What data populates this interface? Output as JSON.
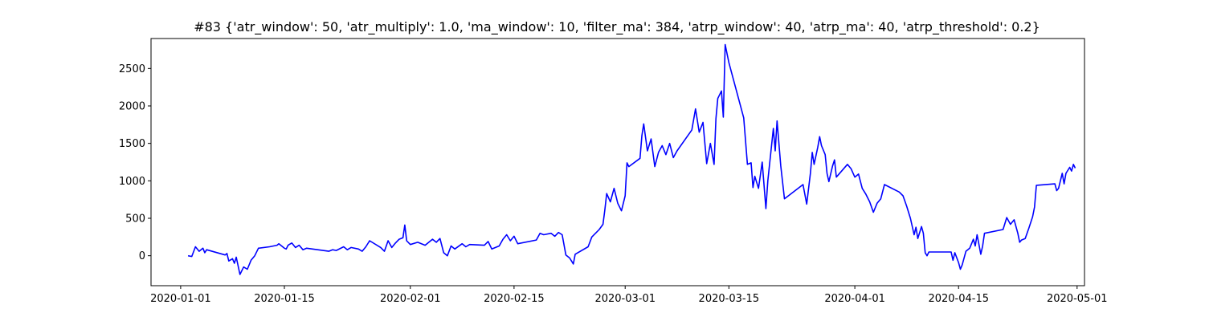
{
  "chart_data": {
    "type": "line",
    "title": "#83 {'atr_window': 50, 'atr_multiply': 1.0, 'ma_window': 10, 'filter_ma': 384, 'atrp_window': 40, 'atrp_ma': 40, 'atrp_threshold': 0.2}",
    "xlabel": "",
    "ylabel": "",
    "xlim": [
      "2019-12-28",
      "2020-05-02"
    ],
    "ylim": [
      -400,
      2900
    ],
    "x_ticks": [
      "2020-01-01",
      "2020-01-15",
      "2020-02-01",
      "2020-02-15",
      "2020-03-01",
      "2020-03-15",
      "2020-04-01",
      "2020-04-15",
      "2020-05-01"
    ],
    "y_ticks": [
      0,
      500,
      1000,
      1500,
      2000,
      2500
    ],
    "grid": false,
    "legend": "none",
    "series": [
      {
        "color": "#0000ff",
        "points": [
          [
            "2020-01-02",
            0
          ],
          [
            "2020-01-02T12",
            -10
          ],
          [
            "2020-01-03",
            120
          ],
          [
            "2020-01-03T12",
            60
          ],
          [
            "2020-01-04",
            100
          ],
          [
            "2020-01-04T06",
            40
          ],
          [
            "2020-01-04T12",
            80
          ],
          [
            "2020-01-07",
            10
          ],
          [
            "2020-01-07T06",
            30
          ],
          [
            "2020-01-07T12",
            -70
          ],
          [
            "2020-01-08",
            -40
          ],
          [
            "2020-01-08T06",
            -100
          ],
          [
            "2020-01-08T12",
            -20
          ],
          [
            "2020-01-09",
            -250
          ],
          [
            "2020-01-09T12",
            -150
          ],
          [
            "2020-01-10",
            -180
          ],
          [
            "2020-01-10T12",
            -60
          ],
          [
            "2020-01-11",
            0
          ],
          [
            "2020-01-11T12",
            100
          ],
          [
            "2020-01-13",
            120
          ],
          [
            "2020-01-14",
            140
          ],
          [
            "2020-01-14T06",
            160
          ],
          [
            "2020-01-15",
            100
          ],
          [
            "2020-01-15T06",
            90
          ],
          [
            "2020-01-15T12",
            140
          ],
          [
            "2020-01-16",
            170
          ],
          [
            "2020-01-16T12",
            110
          ],
          [
            "2020-01-17",
            140
          ],
          [
            "2020-01-17T12",
            80
          ],
          [
            "2020-01-18",
            100
          ],
          [
            "2020-01-21",
            60
          ],
          [
            "2020-01-21T12",
            80
          ],
          [
            "2020-01-22",
            70
          ],
          [
            "2020-01-23",
            120
          ],
          [
            "2020-01-23T12",
            80
          ],
          [
            "2020-01-24",
            110
          ],
          [
            "2020-01-25",
            90
          ],
          [
            "2020-01-25T12",
            60
          ],
          [
            "2020-01-26",
            120
          ],
          [
            "2020-01-26T12",
            200
          ],
          [
            "2020-01-28",
            110
          ],
          [
            "2020-01-28T12",
            60
          ],
          [
            "2020-01-29",
            200
          ],
          [
            "2020-01-29T12",
            110
          ],
          [
            "2020-01-30",
            170
          ],
          [
            "2020-01-30T12",
            220
          ],
          [
            "2020-01-31",
            240
          ],
          [
            "2020-01-31T06",
            410
          ],
          [
            "2020-01-31T12",
            200
          ],
          [
            "2020-02-01",
            150
          ],
          [
            "2020-02-02",
            180
          ],
          [
            "2020-02-03",
            140
          ],
          [
            "2020-02-04",
            220
          ],
          [
            "2020-02-04T12",
            180
          ],
          [
            "2020-02-05",
            230
          ],
          [
            "2020-02-05T12",
            40
          ],
          [
            "2020-02-06",
            0
          ],
          [
            "2020-02-06T12",
            130
          ],
          [
            "2020-02-07",
            90
          ],
          [
            "2020-02-08",
            160
          ],
          [
            "2020-02-08T12",
            120
          ],
          [
            "2020-02-09",
            150
          ],
          [
            "2020-02-11",
            140
          ],
          [
            "2020-02-11T12",
            190
          ],
          [
            "2020-02-12",
            90
          ],
          [
            "2020-02-13",
            130
          ],
          [
            "2020-02-13T12",
            220
          ],
          [
            "2020-02-14",
            280
          ],
          [
            "2020-02-14T12",
            200
          ],
          [
            "2020-02-15",
            260
          ],
          [
            "2020-02-15T12",
            160
          ],
          [
            "2020-02-18",
            210
          ],
          [
            "2020-02-18T12",
            300
          ],
          [
            "2020-02-19",
            280
          ],
          [
            "2020-02-20",
            300
          ],
          [
            "2020-02-20T12",
            260
          ],
          [
            "2020-02-21",
            310
          ],
          [
            "2020-02-21T12",
            280
          ],
          [
            "2020-02-22",
            10
          ],
          [
            "2020-02-22T12",
            -30
          ],
          [
            "2020-02-23",
            -110
          ],
          [
            "2020-02-23T06",
            20
          ],
          [
            "2020-02-25",
            120
          ],
          [
            "2020-02-25T12",
            250
          ],
          [
            "2020-02-26",
            300
          ],
          [
            "2020-02-26T12",
            350
          ],
          [
            "2020-02-27",
            420
          ],
          [
            "2020-02-27T06",
            610
          ],
          [
            "2020-02-27T12",
            830
          ],
          [
            "2020-02-28",
            720
          ],
          [
            "2020-02-28T12",
            900
          ],
          [
            "2020-02-29",
            700
          ],
          [
            "2020-02-29T12",
            600
          ],
          [
            "2020-03-01",
            800
          ],
          [
            "2020-03-01T06",
            1240
          ],
          [
            "2020-03-01T12",
            1190
          ],
          [
            "2020-03-03",
            1300
          ],
          [
            "2020-03-03T06",
            1600
          ],
          [
            "2020-03-03T12",
            1760
          ],
          [
            "2020-03-04",
            1400
          ],
          [
            "2020-03-04T12",
            1560
          ],
          [
            "2020-03-05",
            1190
          ],
          [
            "2020-03-05T12",
            1380
          ],
          [
            "2020-03-06",
            1470
          ],
          [
            "2020-03-06T12",
            1350
          ],
          [
            "2020-03-07",
            1500
          ],
          [
            "2020-03-07T12",
            1310
          ],
          [
            "2020-03-08",
            1400
          ],
          [
            "2020-03-10",
            1680
          ],
          [
            "2020-03-10T12",
            1960
          ],
          [
            "2020-03-11",
            1650
          ],
          [
            "2020-03-11T12",
            1780
          ],
          [
            "2020-03-12",
            1230
          ],
          [
            "2020-03-12T12",
            1500
          ],
          [
            "2020-03-13",
            1220
          ],
          [
            "2020-03-13T06",
            1830
          ],
          [
            "2020-03-13T12",
            2100
          ],
          [
            "2020-03-14",
            2200
          ],
          [
            "2020-03-14T06",
            1850
          ],
          [
            "2020-03-14T12",
            2820
          ],
          [
            "2020-03-15",
            2580
          ],
          [
            "2020-03-17",
            1840
          ],
          [
            "2020-03-17T12",
            1220
          ],
          [
            "2020-03-18",
            1240
          ],
          [
            "2020-03-18T06",
            910
          ],
          [
            "2020-03-18T12",
            1060
          ],
          [
            "2020-03-19",
            900
          ],
          [
            "2020-03-19T12",
            1250
          ],
          [
            "2020-03-20",
            630
          ],
          [
            "2020-03-20T06",
            1000
          ],
          [
            "2020-03-21",
            1700
          ],
          [
            "2020-03-21T06",
            1400
          ],
          [
            "2020-03-21T12",
            1800
          ],
          [
            "2020-03-22",
            1200
          ],
          [
            "2020-03-22T12",
            760
          ],
          [
            "2020-03-25",
            950
          ],
          [
            "2020-03-25T12",
            690
          ],
          [
            "2020-03-26",
            1100
          ],
          [
            "2020-03-26T06",
            1380
          ],
          [
            "2020-03-26T12",
            1220
          ],
          [
            "2020-03-27",
            1450
          ],
          [
            "2020-03-27T06",
            1590
          ],
          [
            "2020-03-27T12",
            1470
          ],
          [
            "2020-03-28",
            1350
          ],
          [
            "2020-03-28T06",
            1100
          ],
          [
            "2020-03-28T12",
            990
          ],
          [
            "2020-03-29",
            1200
          ],
          [
            "2020-03-29T06",
            1280
          ],
          [
            "2020-03-29T12",
            1050
          ],
          [
            "2020-03-31",
            1220
          ],
          [
            "2020-03-31T12",
            1160
          ],
          [
            "2020-04-01",
            1050
          ],
          [
            "2020-04-01T12",
            1090
          ],
          [
            "2020-04-02",
            900
          ],
          [
            "2020-04-02T12",
            820
          ],
          [
            "2020-04-03",
            720
          ],
          [
            "2020-04-03T12",
            580
          ],
          [
            "2020-04-04",
            700
          ],
          [
            "2020-04-04T12",
            760
          ],
          [
            "2020-04-05",
            950
          ],
          [
            "2020-04-07",
            850
          ],
          [
            "2020-04-07T12",
            800
          ],
          [
            "2020-04-08",
            660
          ],
          [
            "2020-04-08T12",
            500
          ],
          [
            "2020-04-09",
            280
          ],
          [
            "2020-04-09T06",
            380
          ],
          [
            "2020-04-09T12",
            230
          ],
          [
            "2020-04-10",
            390
          ],
          [
            "2020-04-10T06",
            300
          ],
          [
            "2020-04-10T12",
            40
          ],
          [
            "2020-04-10T18",
            0
          ],
          [
            "2020-04-11",
            50
          ],
          [
            "2020-04-14",
            50
          ],
          [
            "2020-04-14T06",
            -60
          ],
          [
            "2020-04-14T12",
            40
          ],
          [
            "2020-04-15",
            -90
          ],
          [
            "2020-04-15T06",
            -180
          ],
          [
            "2020-04-15T12",
            -120
          ],
          [
            "2020-04-16",
            60
          ],
          [
            "2020-04-16T12",
            100
          ],
          [
            "2020-04-17",
            220
          ],
          [
            "2020-04-17T06",
            130
          ],
          [
            "2020-04-17T12",
            280
          ],
          [
            "2020-04-18",
            20
          ],
          [
            "2020-04-18T06",
            130
          ],
          [
            "2020-04-18T12",
            300
          ],
          [
            "2020-04-21",
            350
          ],
          [
            "2020-04-21T12",
            510
          ],
          [
            "2020-04-22",
            420
          ],
          [
            "2020-04-22T12",
            480
          ],
          [
            "2020-04-23",
            300
          ],
          [
            "2020-04-23T06",
            180
          ],
          [
            "2020-04-23T12",
            210
          ],
          [
            "2020-04-24",
            230
          ],
          [
            "2020-04-24T12",
            370
          ],
          [
            "2020-04-25",
            520
          ],
          [
            "2020-04-25T06",
            650
          ],
          [
            "2020-04-25T12",
            940
          ],
          [
            "2020-04-28",
            960
          ],
          [
            "2020-04-28T06",
            870
          ],
          [
            "2020-04-28T12",
            900
          ],
          [
            "2020-04-29",
            1100
          ],
          [
            "2020-04-29T06",
            960
          ],
          [
            "2020-04-29T12",
            1100
          ],
          [
            "2020-04-30",
            1180
          ],
          [
            "2020-04-30T06",
            1130
          ],
          [
            "2020-04-30T12",
            1220
          ],
          [
            "2020-04-30T18",
            1170
          ]
        ]
      }
    ]
  }
}
